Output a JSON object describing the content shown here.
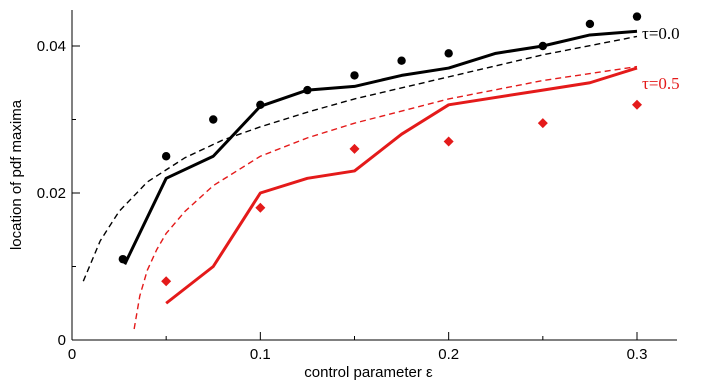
{
  "chart_data": {
    "type": "line",
    "xlabel": "control parameter ε",
    "ylabel": "location of pdf maxima",
    "xlim": [
      0,
      0.32
    ],
    "ylim": [
      0,
      0.046
    ],
    "x_ticks": [
      {
        "value": 0,
        "label": "0"
      },
      {
        "value": 0.1,
        "label": "0.1"
      },
      {
        "value": 0.2,
        "label": "0.2"
      },
      {
        "value": 0.3,
        "label": "0.3"
      }
    ],
    "y_ticks": [
      {
        "value": 0,
        "label": "0"
      },
      {
        "value": 0.02,
        "label": "0.02"
      },
      {
        "value": 0.04,
        "label": "0.04"
      }
    ],
    "groups": [
      {
        "name": "τ=0.0",
        "color": "#000000",
        "label_anchor": {
          "x": 0.3,
          "y": 0.0418
        },
        "markers": {
          "shape": "circle",
          "x": [
            0.027,
            0.05,
            0.075,
            0.1,
            0.125,
            0.15,
            0.175,
            0.2,
            0.25,
            0.275,
            0.3
          ],
          "y": [
            0.011,
            0.025,
            0.03,
            0.032,
            0.034,
            0.036,
            0.038,
            0.039,
            0.04,
            0.043,
            0.044
          ]
        },
        "solid_line": {
          "x": [
            0.028,
            0.05,
            0.075,
            0.1,
            0.125,
            0.15,
            0.175,
            0.2,
            0.225,
            0.25,
            0.275,
            0.3
          ],
          "y": [
            0.0103,
            0.022,
            0.025,
            0.0318,
            0.034,
            0.0345,
            0.036,
            0.037,
            0.039,
            0.04,
            0.0415,
            0.042
          ]
        },
        "dashed_line": {
          "x": [
            0.006,
            0.015,
            0.025,
            0.04,
            0.06,
            0.08,
            0.1,
            0.125,
            0.15,
            0.2,
            0.25,
            0.3
          ],
          "y": [
            0.008,
            0.0135,
            0.0175,
            0.0215,
            0.0248,
            0.0272,
            0.029,
            0.031,
            0.0328,
            0.0358,
            0.0388,
            0.0413
          ]
        }
      },
      {
        "name": "τ=0.5",
        "color": "#e41a1a",
        "label_anchor": {
          "x": 0.3,
          "y": 0.035
        },
        "markers": {
          "shape": "diamond",
          "x": [
            0.05,
            0.1,
            0.15,
            0.2,
            0.25,
            0.3
          ],
          "y": [
            0.008,
            0.018,
            0.026,
            0.027,
            0.0295,
            0.032
          ]
        },
        "solid_line": {
          "x": [
            0.05,
            0.075,
            0.1,
            0.125,
            0.15,
            0.175,
            0.2,
            0.25,
            0.275,
            0.3
          ],
          "y": [
            0.005,
            0.01,
            0.02,
            0.022,
            0.023,
            0.028,
            0.032,
            0.034,
            0.035,
            0.037
          ]
        },
        "dashed_line": {
          "x": [
            0.033,
            0.036,
            0.04,
            0.045,
            0.05,
            0.06,
            0.075,
            0.1,
            0.125,
            0.15,
            0.2,
            0.25,
            0.3
          ],
          "y": [
            0.0015,
            0.006,
            0.0095,
            0.0123,
            0.0145,
            0.0175,
            0.021,
            0.025,
            0.0275,
            0.0295,
            0.0328,
            0.0353,
            0.0372
          ]
        }
      }
    ]
  }
}
